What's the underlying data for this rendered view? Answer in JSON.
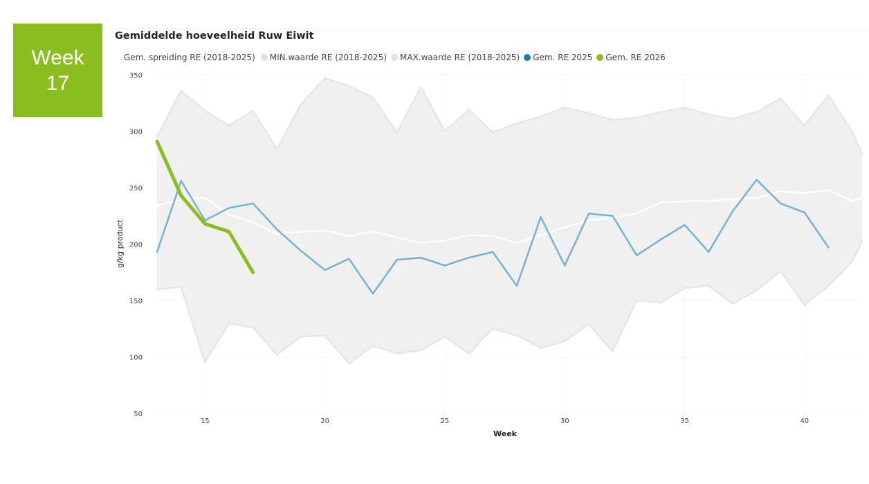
{
  "badge": {
    "line1": "Week",
    "line2": "17",
    "color": "#8bbd1f"
  },
  "chart_data": {
    "type": "line",
    "title": "Gemiddelde hoeveelheid Ruw Eiwit",
    "legend_title": "Gem. spreiding RE (2018-2025)",
    "xlabel": "Week",
    "ylabel": "g/kg product",
    "xlim": [
      13,
      42.4
    ],
    "ylim": [
      50,
      350
    ],
    "xticks": [
      15,
      20,
      25,
      30,
      35,
      40
    ],
    "yticks": [
      50,
      100,
      150,
      200,
      250,
      300,
      350
    ],
    "grid": true,
    "legend_position": "top-left",
    "band": {
      "x": [
        13,
        14,
        15,
        16,
        17,
        18,
        19,
        20,
        21,
        22,
        23,
        24,
        25,
        26,
        27,
        28,
        29,
        30,
        31,
        32,
        33,
        34,
        35,
        36,
        37,
        38,
        39,
        40,
        41,
        42,
        42.4
      ],
      "min": [
        160,
        162,
        95,
        130,
        126,
        102,
        118,
        119,
        94,
        110,
        103,
        106,
        118,
        103,
        125,
        119,
        108,
        114,
        129,
        105,
        150,
        148,
        161,
        163,
        147,
        159,
        176,
        146,
        163,
        185,
        202
      ],
      "max": [
        295,
        336,
        318,
        305,
        318,
        284,
        324,
        347,
        340,
        330,
        299,
        339,
        300,
        319,
        299,
        307,
        313,
        321,
        316,
        310,
        312,
        317,
        321,
        315,
        311,
        317,
        329,
        305,
        332,
        299,
        280
      ]
    },
    "series": [
      {
        "name": "MIN.waarde RE (2018-2025)",
        "color": "#e6e6e6",
        "x": [
          13,
          14,
          15,
          16,
          17,
          18,
          19,
          20,
          21,
          22,
          23,
          24,
          25,
          26,
          27,
          28,
          29,
          30,
          31,
          32,
          33,
          34,
          35,
          36,
          37,
          38,
          39,
          40,
          41,
          42,
          42.4
        ],
        "values": [
          160,
          162,
          95,
          130,
          126,
          102,
          118,
          119,
          94,
          110,
          103,
          106,
          118,
          103,
          125,
          119,
          108,
          114,
          129,
          105,
          150,
          148,
          161,
          163,
          147,
          159,
          176,
          146,
          163,
          185,
          202
        ]
      },
      {
        "name": "MAX.waarde RE (2018-2025)",
        "color": "#e6e6e6",
        "x": [
          13,
          14,
          15,
          16,
          17,
          18,
          19,
          20,
          21,
          22,
          23,
          24,
          25,
          26,
          27,
          28,
          29,
          30,
          31,
          32,
          33,
          34,
          35,
          36,
          37,
          38,
          39,
          40,
          41,
          42,
          42.4
        ],
        "values": [
          295,
          336,
          318,
          305,
          318,
          284,
          324,
          347,
          340,
          330,
          299,
          339,
          300,
          319,
          299,
          307,
          313,
          321,
          316,
          310,
          312,
          317,
          321,
          315,
          311,
          317,
          329,
          305,
          332,
          299,
          280
        ]
      },
      {
        "name": "",
        "color": "#ffffff",
        "x": [
          13,
          14,
          15,
          16,
          17,
          18,
          19,
          20,
          21,
          22,
          23,
          24,
          25,
          26,
          27,
          28,
          29,
          30,
          31,
          32,
          33,
          34,
          35,
          36,
          37,
          38,
          39,
          40,
          41,
          42,
          42.4
        ],
        "values": [
          234,
          240,
          241,
          226,
          219,
          209,
          211,
          212,
          207,
          211,
          206,
          201,
          203,
          208,
          207,
          201,
          208,
          215,
          221,
          223,
          227,
          237,
          238,
          238,
          240,
          241,
          247,
          245,
          248,
          238,
          241
        ]
      },
      {
        "name": "Gem. RE 2025",
        "color": "#76b0d9",
        "x": [
          13,
          14,
          15,
          16,
          17,
          18,
          19,
          20,
          21,
          22,
          23,
          24,
          25,
          26,
          27,
          28,
          29,
          30,
          31,
          32,
          33,
          34,
          35,
          36,
          37,
          38,
          39,
          40,
          41
        ],
        "values": [
          193,
          256,
          221,
          232,
          236,
          213,
          194,
          177,
          187,
          156,
          186,
          188,
          181,
          188,
          193,
          163,
          224,
          181,
          227,
          225,
          190,
          204,
          217,
          193,
          229,
          257,
          236,
          228,
          197
        ]
      },
      {
        "name": "Gem. RE 2026",
        "color": "#8bbd1f",
        "x": [
          13,
          14,
          15,
          16,
          17
        ],
        "values": [
          291,
          243,
          218,
          211,
          175
        ]
      }
    ]
  },
  "legend_items": [
    {
      "label": "MIN.waarde RE (2018-2025)",
      "color": "#e1e1e1"
    },
    {
      "label": "MAX.waarde RE (2018-2025)",
      "color": "#e1e1e1"
    },
    {
      "label": "Gem. RE 2025",
      "color": "#1f77b4"
    },
    {
      "label": "Gem. RE 2026",
      "color": "#8bbd1f"
    }
  ]
}
